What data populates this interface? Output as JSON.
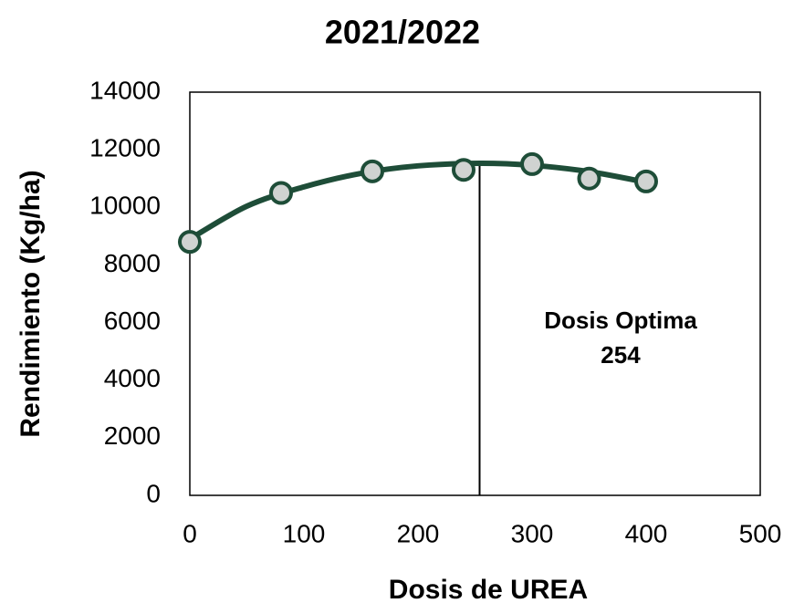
{
  "chart_data": {
    "type": "scatter",
    "title": "2021/2022",
    "x_label": "Dosis de UREA",
    "y_label": "Rendimiento (Kg/ha)",
    "x": [
      0,
      80,
      160,
      240,
      300,
      350,
      400
    ],
    "values": [
      8800,
      10500,
      11250,
      11300,
      11500,
      11000,
      10900
    ],
    "marker_fill": "#d0d3d1",
    "color": "#1e4d38",
    "fit": {
      "x": [
        0,
        50,
        100,
        150,
        200,
        254,
        300,
        350,
        400
      ],
      "values": [
        8900,
        10040,
        10710,
        11180,
        11440,
        11530,
        11460,
        11240,
        10870
      ],
      "color": "#1e4d38"
    },
    "optimum": {
      "label": "Dosis Optima",
      "x": 254
    },
    "xlim": [
      0,
      500
    ],
    "xticks": [
      0,
      100,
      200,
      300,
      400,
      500
    ],
    "ylim": [
      0,
      14000
    ],
    "yticks": [
      0,
      2000,
      4000,
      6000,
      8000,
      10000,
      12000,
      14000
    ],
    "grid": false
  }
}
